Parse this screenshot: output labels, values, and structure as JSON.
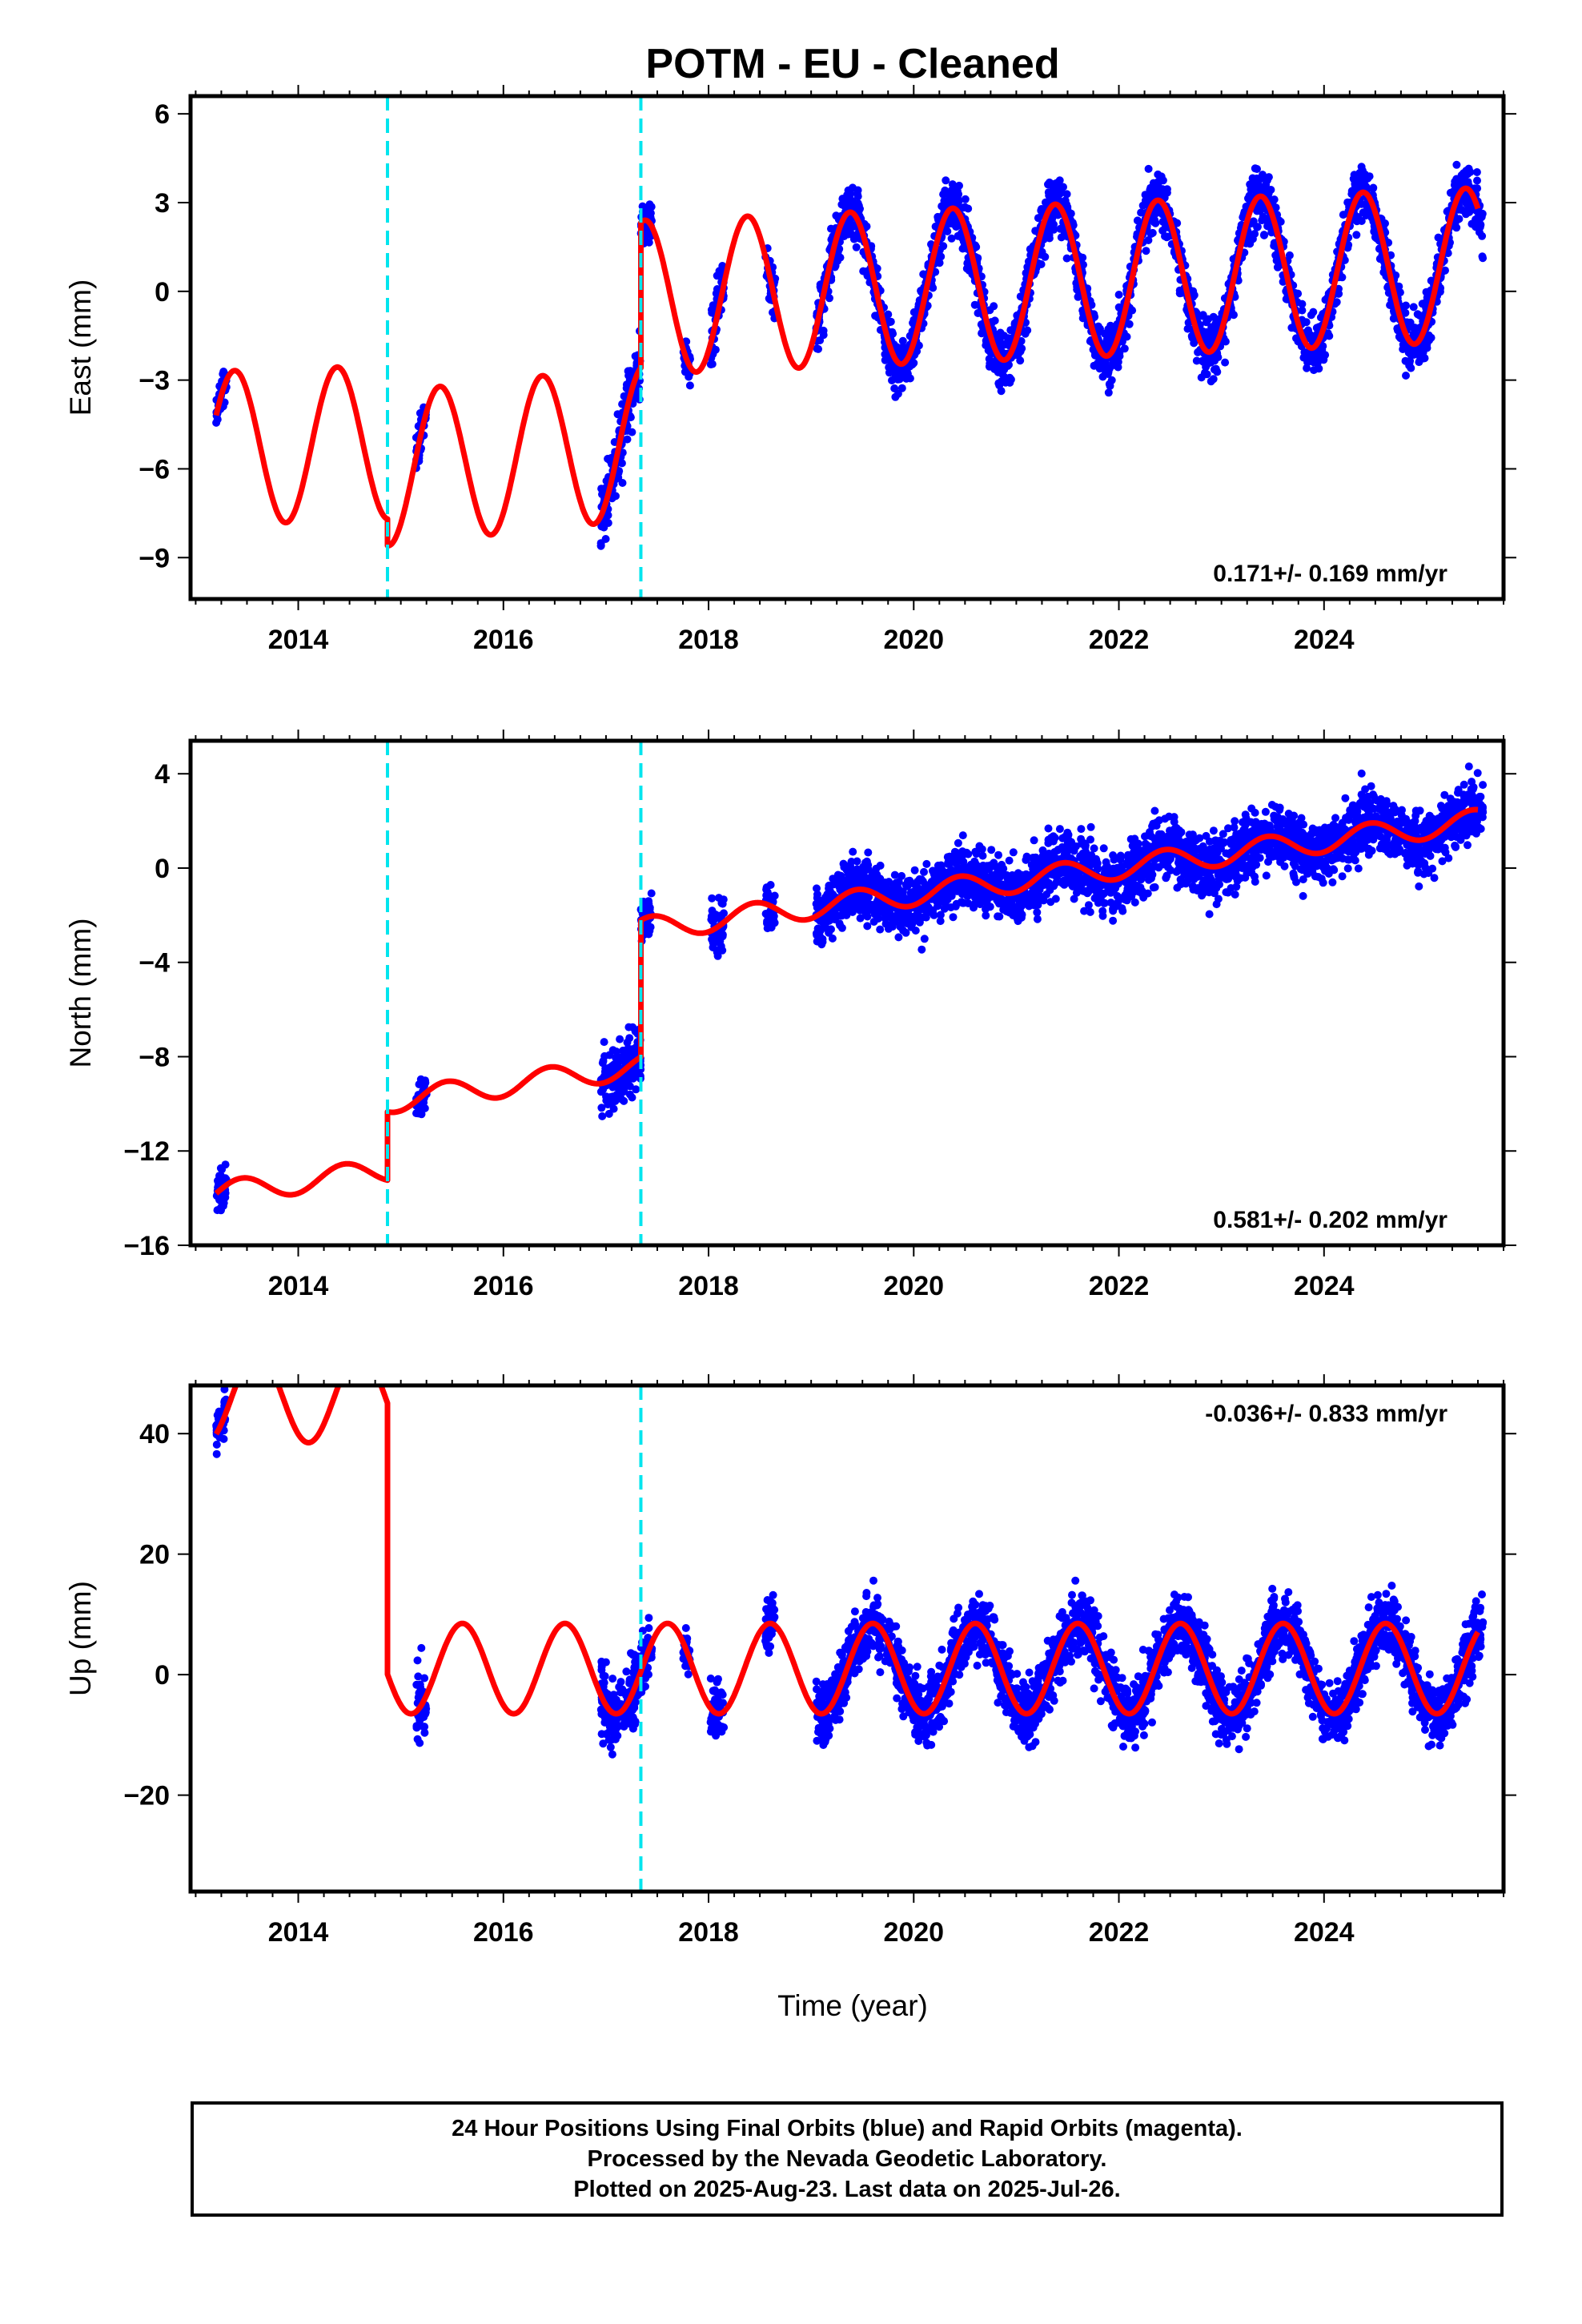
{
  "title": "POTM  - EU - Cleaned",
  "xlabel": "Time (year)",
  "footer": {
    "line1": "24 Hour Positions Using Final Orbits (blue) and Rapid Orbits (magenta).",
    "line2": "Processed by the Nevada Geodetic Laboratory.",
    "line3": "Plotted on 2025-Aug-23. Last data on 2025-Jul-26."
  },
  "colors": {
    "data_points": "#0000ff",
    "model_fit": "#ff0000",
    "offset_lines": "#00e5ee",
    "frame": "#000000"
  },
  "chart_data": [
    {
      "type": "scatter",
      "component": "East",
      "ylabel": "East (mm)",
      "rate_text": "0.171+/- 0.169 mm/yr",
      "rate_position": "bottom-right",
      "xlim": [
        2012.95,
        2025.75
      ],
      "ylim": [
        -10.4,
        6.6
      ],
      "xticks": [
        2014,
        2016,
        2018,
        2020,
        2022,
        2024
      ],
      "yticks": [
        -9,
        -6,
        -3,
        0,
        3,
        6
      ],
      "offset_lines_x": [
        2014.87,
        2017.34
      ],
      "model_segments": [
        {
          "from": 2013.2,
          "to": 2014.87,
          "level_start": -5.3,
          "level_end": -5.1,
          "amplitude": 2.6,
          "peak_phase": 0.38
        },
        {
          "from": 2014.87,
          "to": 2017.34,
          "level_start": -6.0,
          "level_end": -5.1,
          "amplitude": 2.6,
          "peak_phase": 0.38
        },
        {
          "from": 2017.34,
          "to": 2025.5,
          "level_start": -0.2,
          "level_end": 0.9,
          "amplitude": 2.6,
          "peak_phase": 0.38
        }
      ],
      "data_clusters": [
        {
          "from": 2013.2,
          "to": 2013.3,
          "model_segment": 0,
          "scatter": 0.6
        },
        {
          "from": 2015.15,
          "to": 2015.25,
          "model_segment": 1,
          "scatter": 0.6
        },
        {
          "from": 2016.95,
          "to": 2017.34,
          "model_segment": 1,
          "scatter": 1.0
        },
        {
          "from": 2017.34,
          "to": 2017.45,
          "model_segment": 2,
          "scatter": 0.7
        },
        {
          "from": 2017.75,
          "to": 2017.82,
          "model_segment": 2,
          "scatter": 0.6
        },
        {
          "from": 2018.02,
          "to": 2018.15,
          "model_segment": 2,
          "scatter": 1.0
        },
        {
          "from": 2018.55,
          "to": 2018.65,
          "model_segment": 2,
          "scatter": 0.7
        },
        {
          "from": 2019.05,
          "to": 2025.55,
          "model_segment": 2,
          "scatter": 0.8
        }
      ]
    },
    {
      "type": "scatter",
      "component": "North",
      "ylabel": "North (mm)",
      "rate_text": "0.581+/- 0.202 mm/yr",
      "rate_position": "bottom-right",
      "xlim": [
        2012.95,
        2025.75
      ],
      "ylim": [
        -16,
        5.4
      ],
      "xticks": [
        2014,
        2016,
        2018,
        2020,
        2022,
        2024
      ],
      "yticks": [
        -16,
        -12,
        -8,
        -4,
        0,
        4
      ],
      "offset_lines_x": [
        2014.87,
        2017.34
      ],
      "model_segments": [
        {
          "from": 2013.2,
          "to": 2014.87,
          "level_start": -13.8,
          "level_end": -12.8,
          "amplitude": 0.5,
          "peak_phase": 0.45
        },
        {
          "from": 2014.87,
          "to": 2017.34,
          "level_start": -9.9,
          "level_end": -8.4,
          "amplitude": 0.5,
          "peak_phase": 0.45
        },
        {
          "from": 2017.34,
          "to": 2025.5,
          "level_start": -2.6,
          "level_end": 2.0,
          "amplitude": 0.5,
          "peak_phase": 0.45
        }
      ],
      "data_clusters": [
        {
          "from": 2013.2,
          "to": 2013.3,
          "model_segment": 0,
          "scatter": 0.7
        },
        {
          "from": 2015.15,
          "to": 2015.25,
          "model_segment": 1,
          "scatter": 0.7
        },
        {
          "from": 2016.95,
          "to": 2017.34,
          "model_segment": 1,
          "scatter": 1.1
        },
        {
          "from": 2017.34,
          "to": 2017.45,
          "model_segment": 2,
          "scatter": 0.7
        },
        {
          "from": 2018.02,
          "to": 2018.15,
          "model_segment": 2,
          "scatter": 0.8
        },
        {
          "from": 2018.55,
          "to": 2018.65,
          "model_segment": 2,
          "scatter": 0.8
        },
        {
          "from": 2019.05,
          "to": 2025.55,
          "model_segment": 2,
          "scatter": 1.1
        }
      ]
    },
    {
      "type": "scatter",
      "component": "Up",
      "ylabel": "Up (mm)",
      "rate_text": "-0.036+/- 0.833 mm/yr",
      "rate_position": "top-right",
      "xlim": [
        2012.95,
        2025.75
      ],
      "ylim": [
        -36,
        48
      ],
      "xticks": [
        2014,
        2016,
        2018,
        2020,
        2022,
        2024
      ],
      "yticks": [
        -20,
        0,
        20,
        40
      ],
      "offset_lines_x": [
        2017.34
      ],
      "model_segments": [
        {
          "from": 2013.2,
          "to": 2014.87,
          "level_start": 46.0,
          "level_end": 46.0,
          "amplitude": 7.5,
          "peak_phase": 0.6
        },
        {
          "from": 2014.87,
          "to": 2025.5,
          "level_start": 1.0,
          "level_end": 1.0,
          "amplitude": 7.5,
          "peak_phase": 0.6
        }
      ],
      "data_clusters": [
        {
          "from": 2013.2,
          "to": 2013.3,
          "model_segment": 0,
          "scatter": 3.0
        },
        {
          "from": 2015.15,
          "to": 2015.25,
          "model_segment": 1,
          "scatter": 5.0
        },
        {
          "from": 2016.95,
          "to": 2017.34,
          "model_segment": 1,
          "scatter": 5.0
        },
        {
          "from": 2017.34,
          "to": 2017.45,
          "model_segment": 1,
          "scatter": 4.0
        },
        {
          "from": 2017.75,
          "to": 2017.82,
          "model_segment": 1,
          "scatter": 3.0
        },
        {
          "from": 2018.02,
          "to": 2018.15,
          "model_segment": 1,
          "scatter": 4.0
        },
        {
          "from": 2018.55,
          "to": 2018.65,
          "model_segment": 1,
          "scatter": 4.0
        },
        {
          "from": 2019.05,
          "to": 2025.55,
          "model_segment": 1,
          "scatter": 4.5
        }
      ]
    }
  ]
}
